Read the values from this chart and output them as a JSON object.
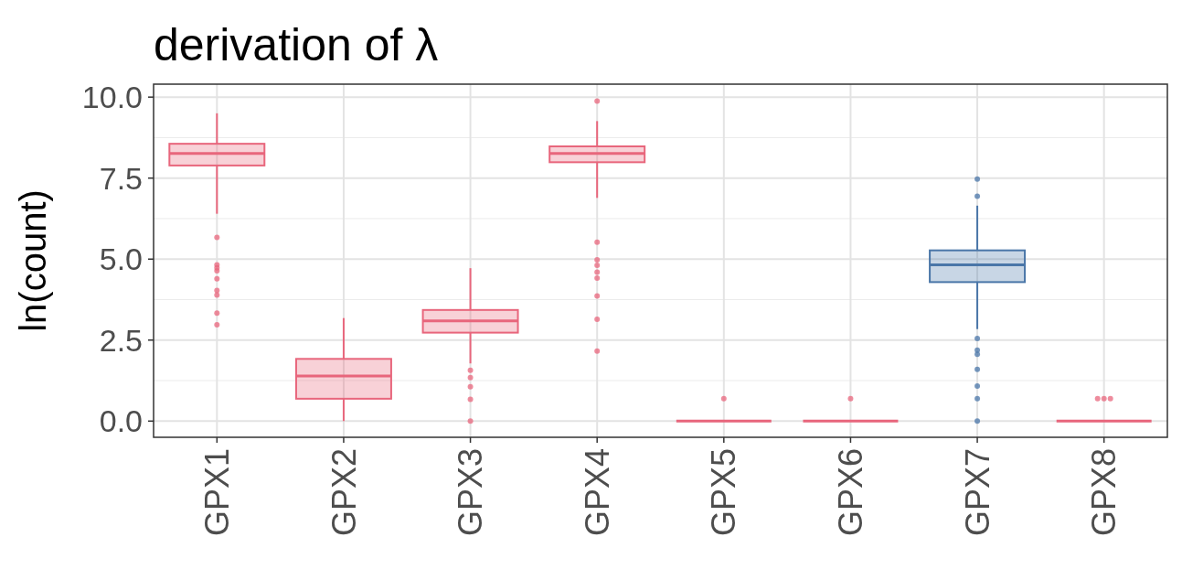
{
  "chart_data": {
    "type": "box",
    "title": "derivation of  λ",
    "ylabel": "ln(count)",
    "categories": [
      "GPX1",
      "GPX2",
      "GPX3",
      "GPX4",
      "GPX5",
      "GPX6",
      "GPX7",
      "GPX8"
    ],
    "colors": [
      "#e8667c",
      "#e8667c",
      "#e8667c",
      "#e8667c",
      "#e8667c",
      "#e8667c",
      "#4a76a8",
      "#e8667c"
    ],
    "boxes": [
      {
        "low": 6.4,
        "q1": 7.89,
        "median": 8.26,
        "q3": 8.56,
        "high": 9.5,
        "outliers": [
          5.67,
          4.82,
          4.73,
          4.64,
          4.39,
          4.03,
          3.89,
          3.33,
          2.97
        ]
      },
      {
        "low": 0,
        "q1": 0.69,
        "median": 1.39,
        "q3": 1.92,
        "high": 3.18
      },
      {
        "low": 1.78,
        "q1": 2.73,
        "median": 3.09,
        "q3": 3.43,
        "high": 4.72,
        "outliers": [
          1.57,
          1.34,
          1.06,
          0.67,
          0
        ]
      },
      {
        "low": 6.89,
        "q1": 7.99,
        "median": 8.26,
        "q3": 8.48,
        "high": 9.26,
        "outliers": [
          9.88,
          5.52,
          4.98,
          4.81,
          4.6,
          4.41,
          3.86,
          3.14,
          2.16
        ]
      },
      {
        "low": 0,
        "q1": 0,
        "median": 0,
        "q3": 0,
        "high": 0,
        "outliers": [
          0.69
        ]
      },
      {
        "low": 0,
        "q1": 0,
        "median": 0,
        "q3": 0,
        "high": 0,
        "outliers": [
          0.69
        ]
      },
      {
        "low": 2.84,
        "q1": 4.29,
        "median": 4.82,
        "q3": 5.27,
        "high": 6.65,
        "outliers": [
          7.47,
          6.94,
          2.55,
          2.19,
          2.06,
          1.6,
          1.08,
          0.69,
          0
        ]
      },
      {
        "low": 0,
        "q1": 0,
        "median": 0,
        "q3": 0,
        "high": 0,
        "outliers": [
          0.69,
          0.69,
          0.69
        ]
      }
    ],
    "ylim": [
      -0.5,
      10.4
    ],
    "yticks": [
      {
        "value": 0,
        "label": "0.0"
      },
      {
        "value": 2.5,
        "label": "2.5"
      },
      {
        "value": 5,
        "label": "5.0"
      },
      {
        "value": 7.5,
        "label": "7.5"
      },
      {
        "value": 10,
        "label": "10.0"
      }
    ],
    "grid": true
  }
}
